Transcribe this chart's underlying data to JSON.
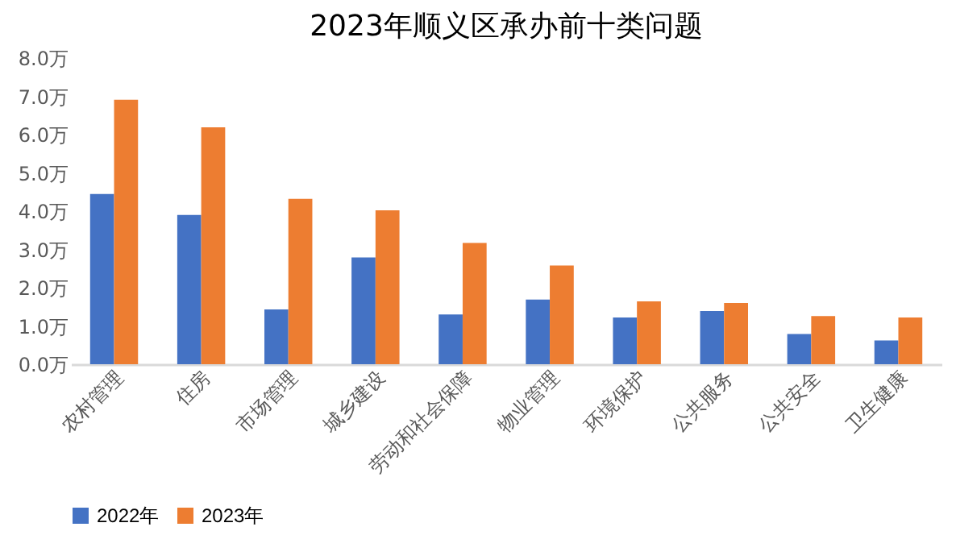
{
  "chart_data": {
    "type": "bar",
    "title": "2023年顺义区承办前十类问题",
    "categories": [
      "农村管理",
      "住房",
      "市场管理",
      "城乡建设",
      "劳动和社会保障",
      "物业管理",
      "环境保护",
      "公共服务",
      "公共安全",
      "卫生健康"
    ],
    "series": [
      {
        "name": "2022年",
        "color": "#4472c4",
        "values": [
          4.45,
          3.9,
          1.43,
          2.79,
          1.3,
          1.69,
          1.22,
          1.39,
          0.79,
          0.62
        ]
      },
      {
        "name": "2023年",
        "color": "#ed7d31",
        "values": [
          6.91,
          6.19,
          4.32,
          4.02,
          3.17,
          2.58,
          1.64,
          1.6,
          1.26,
          1.22
        ]
      }
    ],
    "ylim": [
      0,
      8
    ],
    "yticks": [
      {
        "value": 0,
        "label": "0.0万"
      },
      {
        "value": 1,
        "label": "1.0万"
      },
      {
        "value": 2,
        "label": "2.0万"
      },
      {
        "value": 3,
        "label": "3.0万"
      },
      {
        "value": 4,
        "label": "4.0万"
      },
      {
        "value": 5,
        "label": "5.0万"
      },
      {
        "value": 6,
        "label": "6.0万"
      },
      {
        "value": 7,
        "label": "7.0万"
      },
      {
        "value": 8,
        "label": "8.0万"
      }
    ],
    "grid": false,
    "legend": "bottom"
  }
}
